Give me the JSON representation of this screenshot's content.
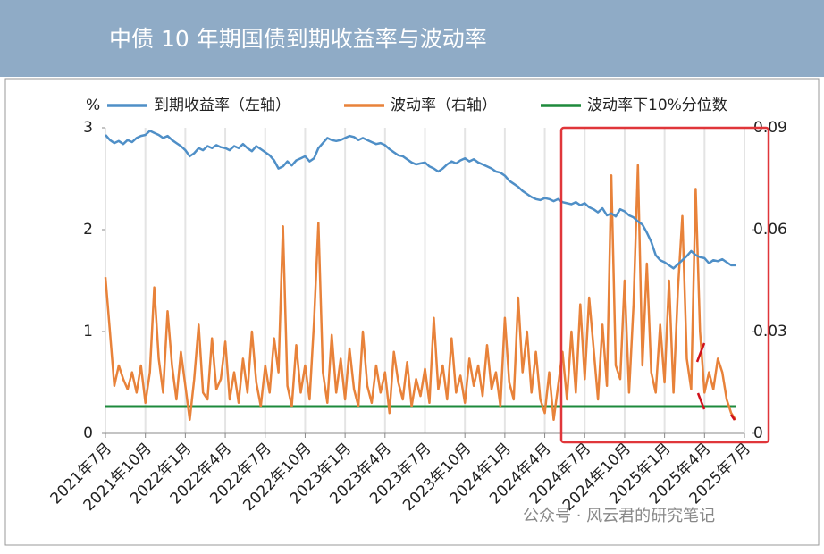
{
  "chart_data": {
    "type": "line",
    "title": "中债 10 年期国债到期收益率与波动率",
    "y_unit": "%",
    "watermark": "公众号 · 风云君的研究笔记",
    "categories": [
      "2021年7月",
      null,
      null,
      null,
      null,
      null,
      null,
      null,
      null,
      "2021年10月",
      null,
      null,
      null,
      null,
      null,
      null,
      null,
      null,
      "2022年1月",
      null,
      null,
      null,
      null,
      null,
      null,
      null,
      null,
      "2022年4月",
      null,
      null,
      null,
      null,
      null,
      null,
      null,
      null,
      "2022年7月",
      null,
      null,
      null,
      null,
      null,
      null,
      null,
      null,
      "2022年10月",
      null,
      null,
      null,
      null,
      null,
      null,
      null,
      null,
      "2023年1月",
      null,
      null,
      null,
      null,
      null,
      null,
      null,
      null,
      "2023年4月",
      null,
      null,
      null,
      null,
      null,
      null,
      null,
      null,
      "2023年7月",
      null,
      null,
      null,
      null,
      null,
      null,
      null,
      null,
      "2023年10月",
      null,
      null,
      null,
      null,
      null,
      null,
      null,
      null,
      "2024年1月",
      null,
      null,
      null,
      null,
      null,
      null,
      null,
      null,
      "2024年4月",
      null,
      null,
      null,
      null,
      null,
      null,
      null,
      null,
      "2024年7月",
      null,
      null,
      null,
      null,
      null,
      null,
      null,
      null,
      "2024年10月",
      null,
      null,
      null,
      null,
      null,
      null,
      null,
      null,
      "2025年1月",
      null,
      null,
      null,
      null,
      null,
      null,
      null,
      null,
      "2025年4月",
      null,
      null,
      null,
      null,
      null,
      null,
      null,
      null,
      "2025年7月"
    ],
    "series": [
      {
        "name": "到期收益率（左轴）",
        "color": "#4f8fc7",
        "axis": "y",
        "values": [
          2.93,
          2.88,
          2.85,
          2.87,
          2.84,
          2.88,
          2.86,
          2.9,
          2.92,
          2.93,
          2.97,
          2.95,
          2.93,
          2.9,
          2.92,
          2.88,
          2.85,
          2.82,
          2.78,
          2.72,
          2.75,
          2.8,
          2.78,
          2.82,
          2.8,
          2.83,
          2.81,
          2.8,
          2.78,
          2.82,
          2.8,
          2.84,
          2.8,
          2.77,
          2.82,
          2.79,
          2.76,
          2.73,
          2.68,
          2.6,
          2.62,
          2.67,
          2.63,
          2.68,
          2.7,
          2.72,
          2.67,
          2.7,
          2.8,
          2.85,
          2.9,
          2.88,
          2.87,
          2.88,
          2.9,
          2.92,
          2.91,
          2.88,
          2.9,
          2.88,
          2.86,
          2.84,
          2.85,
          2.83,
          2.79,
          2.76,
          2.73,
          2.72,
          2.69,
          2.66,
          2.64,
          2.65,
          2.66,
          2.62,
          2.6,
          2.57,
          2.6,
          2.64,
          2.67,
          2.65,
          2.68,
          2.7,
          2.67,
          2.69,
          2.66,
          2.64,
          2.62,
          2.6,
          2.57,
          2.56,
          2.53,
          2.48,
          2.45,
          2.42,
          2.38,
          2.35,
          2.32,
          2.3,
          2.29,
          2.31,
          2.3,
          2.28,
          2.3,
          2.27,
          2.26,
          2.25,
          2.27,
          2.24,
          2.26,
          2.22,
          2.2,
          2.17,
          2.21,
          2.14,
          2.16,
          2.13,
          2.2,
          2.18,
          2.14,
          2.12,
          2.08,
          2.05,
          1.97,
          1.88,
          1.75,
          1.7,
          1.68,
          1.65,
          1.62,
          1.66,
          1.7,
          1.74,
          1.79,
          1.75,
          1.73,
          1.72,
          1.67,
          1.7,
          1.69,
          1.71,
          1.68,
          1.65,
          1.65,
          null,
          null
        ]
      },
      {
        "name": "波动率（右轴）",
        "color": "#e8823a",
        "axis": "y2",
        "values": [
          0.046,
          0.03,
          0.014,
          0.02,
          0.016,
          0.013,
          0.018,
          0.012,
          0.02,
          0.009,
          0.018,
          0.043,
          0.022,
          0.012,
          0.036,
          0.02,
          0.01,
          0.024,
          0.014,
          0.004,
          0.016,
          0.032,
          0.012,
          0.01,
          0.028,
          0.013,
          0.016,
          0.027,
          0.01,
          0.018,
          0.009,
          0.022,
          0.012,
          0.03,
          0.015,
          0.008,
          0.02,
          0.012,
          0.028,
          0.018,
          0.061,
          0.014,
          0.008,
          0.026,
          0.012,
          0.02,
          0.01,
          0.033,
          0.062,
          0.018,
          0.009,
          0.029,
          0.012,
          0.022,
          0.01,
          0.025,
          0.013,
          0.008,
          0.03,
          0.014,
          0.009,
          0.02,
          0.012,
          0.018,
          0.006,
          0.024,
          0.015,
          0.01,
          0.021,
          0.008,
          0.016,
          0.011,
          0.019,
          0.009,
          0.034,
          0.013,
          0.02,
          0.01,
          0.028,
          0.012,
          0.017,
          0.009,
          0.022,
          0.014,
          0.02,
          0.011,
          0.026,
          0.013,
          0.018,
          0.008,
          0.034,
          0.015,
          0.01,
          0.04,
          0.018,
          0.03,
          0.012,
          0.024,
          0.01,
          0.006,
          0.018,
          0.004,
          0.014,
          0.024,
          0.01,
          0.03,
          0.012,
          0.038,
          0.016,
          0.04,
          0.025,
          0.01,
          0.032,
          0.014,
          0.076,
          0.02,
          0.016,
          0.045,
          0.012,
          0.038,
          0.079,
          0.02,
          0.05,
          0.018,
          0.012,
          0.032,
          0.015,
          0.045,
          0.012,
          0.042,
          0.064,
          0.022,
          0.013,
          0.072,
          0.03,
          0.012,
          0.018,
          0.013,
          0.022,
          0.018,
          0.01,
          0.006,
          0.004,
          null,
          null
        ]
      }
    ],
    "reference_line": {
      "name": "波动率下10%分位数",
      "color": "#1e8a3c",
      "axis": "y2",
      "value": 0.0079
    },
    "ylim": [
      0,
      3
    ],
    "yticks": [
      0,
      1,
      2,
      3
    ],
    "y2lim": [
      0,
      0.09
    ],
    "y2ticks": [
      0,
      0.03,
      0.06,
      0.09
    ],
    "grid": "x"
  }
}
